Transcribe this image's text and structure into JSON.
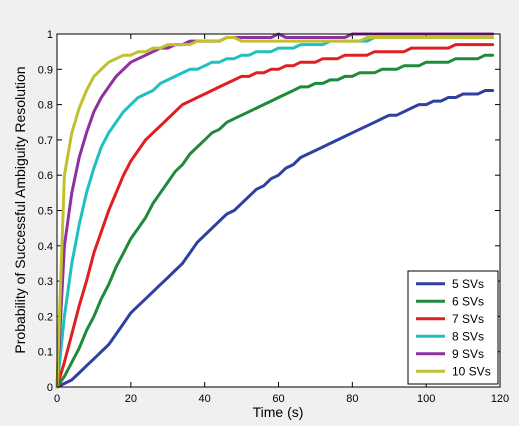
{
  "chart_data": {
    "type": "line",
    "title": "",
    "xlabel": "Time (s)",
    "ylabel": "Probability of Successful Ambiguity Resolution",
    "xlim": [
      0,
      120
    ],
    "ylim": [
      0,
      1
    ],
    "xticks": [
      0,
      20,
      40,
      60,
      80,
      100,
      120
    ],
    "yticks": [
      0,
      0.1,
      0.2,
      0.3,
      0.4,
      0.5,
      0.6,
      0.7,
      0.8,
      0.9,
      1
    ],
    "ytick_labels": [
      "0",
      "0.1",
      "0.2",
      "0.3",
      "0.4",
      "0.5",
      "0.6",
      "0.7",
      "0.8",
      "0.9",
      "1"
    ],
    "grid": false,
    "legend_position": "bottom-right",
    "series": [
      {
        "name": "5 SVs",
        "color": "#3040a0",
        "x": [
          0,
          2,
          4,
          6,
          8,
          10,
          12,
          14,
          16,
          18,
          20,
          22,
          24,
          26,
          28,
          30,
          32,
          34,
          36,
          38,
          40,
          42,
          44,
          46,
          48,
          50,
          52,
          54,
          56,
          58,
          60,
          62,
          64,
          66,
          68,
          70,
          72,
          74,
          76,
          78,
          80,
          82,
          84,
          86,
          88,
          90,
          92,
          94,
          96,
          98,
          100,
          102,
          104,
          106,
          108,
          110,
          112,
          114,
          116,
          118
        ],
        "y": [
          0,
          0.01,
          0.02,
          0.04,
          0.06,
          0.08,
          0.1,
          0.12,
          0.15,
          0.18,
          0.21,
          0.23,
          0.25,
          0.27,
          0.29,
          0.31,
          0.33,
          0.35,
          0.38,
          0.41,
          0.43,
          0.45,
          0.47,
          0.49,
          0.5,
          0.52,
          0.54,
          0.56,
          0.57,
          0.59,
          0.6,
          0.62,
          0.63,
          0.65,
          0.66,
          0.67,
          0.68,
          0.69,
          0.7,
          0.71,
          0.72,
          0.73,
          0.74,
          0.75,
          0.76,
          0.77,
          0.77,
          0.78,
          0.79,
          0.8,
          0.8,
          0.81,
          0.81,
          0.82,
          0.82,
          0.83,
          0.83,
          0.83,
          0.84,
          0.84
        ]
      },
      {
        "name": "6 SVs",
        "color": "#1f8a3a",
        "x": [
          0,
          2,
          4,
          6,
          8,
          10,
          12,
          14,
          16,
          18,
          20,
          22,
          24,
          26,
          28,
          30,
          32,
          34,
          36,
          38,
          40,
          42,
          44,
          46,
          48,
          50,
          52,
          54,
          56,
          58,
          60,
          62,
          64,
          66,
          68,
          70,
          72,
          74,
          76,
          78,
          80,
          82,
          84,
          86,
          88,
          90,
          92,
          94,
          96,
          98,
          100,
          102,
          104,
          106,
          108,
          110,
          112,
          114,
          116,
          118
        ],
        "y": [
          0,
          0.03,
          0.07,
          0.11,
          0.16,
          0.2,
          0.25,
          0.29,
          0.34,
          0.38,
          0.42,
          0.45,
          0.48,
          0.52,
          0.55,
          0.58,
          0.61,
          0.63,
          0.66,
          0.68,
          0.7,
          0.72,
          0.73,
          0.75,
          0.76,
          0.77,
          0.78,
          0.79,
          0.8,
          0.81,
          0.82,
          0.83,
          0.84,
          0.85,
          0.85,
          0.86,
          0.86,
          0.87,
          0.87,
          0.88,
          0.88,
          0.89,
          0.89,
          0.89,
          0.9,
          0.9,
          0.9,
          0.91,
          0.91,
          0.91,
          0.92,
          0.92,
          0.92,
          0.92,
          0.93,
          0.93,
          0.93,
          0.93,
          0.94,
          0.94
        ]
      },
      {
        "name": "7 SVs",
        "color": "#e02020",
        "x": [
          0,
          2,
          4,
          6,
          8,
          10,
          12,
          14,
          16,
          18,
          20,
          22,
          24,
          26,
          28,
          30,
          32,
          34,
          36,
          38,
          40,
          42,
          44,
          46,
          48,
          50,
          52,
          54,
          56,
          58,
          60,
          62,
          64,
          66,
          68,
          70,
          72,
          74,
          76,
          78,
          80,
          82,
          84,
          86,
          88,
          90,
          92,
          94,
          96,
          98,
          100,
          102,
          104,
          106,
          108,
          110,
          112,
          114,
          116,
          118
        ],
        "y": [
          0,
          0.07,
          0.15,
          0.23,
          0.3,
          0.38,
          0.44,
          0.5,
          0.55,
          0.6,
          0.64,
          0.67,
          0.7,
          0.72,
          0.74,
          0.76,
          0.78,
          0.8,
          0.81,
          0.82,
          0.83,
          0.84,
          0.85,
          0.86,
          0.87,
          0.88,
          0.88,
          0.89,
          0.89,
          0.9,
          0.9,
          0.91,
          0.91,
          0.92,
          0.92,
          0.92,
          0.93,
          0.93,
          0.93,
          0.94,
          0.94,
          0.94,
          0.94,
          0.95,
          0.95,
          0.95,
          0.95,
          0.95,
          0.96,
          0.96,
          0.96,
          0.96,
          0.96,
          0.96,
          0.97,
          0.97,
          0.97,
          0.97,
          0.97,
          0.97
        ]
      },
      {
        "name": "8 SVs",
        "color": "#20c0c0",
        "x": [
          0,
          2,
          4,
          6,
          8,
          10,
          12,
          14,
          16,
          18,
          20,
          22,
          24,
          26,
          28,
          30,
          32,
          34,
          36,
          38,
          40,
          42,
          44,
          46,
          48,
          50,
          52,
          54,
          56,
          58,
          60,
          62,
          64,
          66,
          68,
          70,
          72,
          74,
          76,
          78,
          80,
          82,
          84,
          86,
          88,
          90,
          92,
          94,
          96,
          98,
          100,
          102,
          104,
          106,
          108,
          110,
          112,
          114,
          116,
          118
        ],
        "y": [
          0,
          0.2,
          0.35,
          0.46,
          0.55,
          0.62,
          0.68,
          0.72,
          0.75,
          0.78,
          0.8,
          0.82,
          0.83,
          0.84,
          0.86,
          0.87,
          0.88,
          0.89,
          0.9,
          0.9,
          0.91,
          0.92,
          0.92,
          0.93,
          0.93,
          0.94,
          0.94,
          0.95,
          0.95,
          0.95,
          0.96,
          0.96,
          0.96,
          0.97,
          0.97,
          0.97,
          0.97,
          0.98,
          0.98,
          0.98,
          0.98,
          0.98,
          0.98,
          0.99,
          0.99,
          0.99,
          0.99,
          0.99,
          0.99,
          0.99,
          0.99,
          0.99,
          0.99,
          0.99,
          0.99,
          0.99,
          0.99,
          0.99,
          0.99,
          0.99
        ]
      },
      {
        "name": "9 SVs",
        "color": "#9030a0",
        "x": [
          0,
          2,
          4,
          6,
          8,
          10,
          12,
          14,
          16,
          18,
          20,
          22,
          24,
          26,
          28,
          30,
          32,
          34,
          36,
          38,
          40,
          42,
          44,
          46,
          48,
          50,
          52,
          54,
          56,
          58,
          60,
          62,
          64,
          66,
          68,
          70,
          72,
          74,
          76,
          78,
          80,
          82,
          84,
          86,
          88,
          90,
          92,
          94,
          96,
          98,
          100,
          102,
          104,
          106,
          108,
          110,
          112,
          114,
          116,
          118
        ],
        "y": [
          0,
          0.4,
          0.55,
          0.65,
          0.72,
          0.78,
          0.82,
          0.85,
          0.88,
          0.9,
          0.92,
          0.93,
          0.94,
          0.95,
          0.96,
          0.96,
          0.97,
          0.97,
          0.98,
          0.98,
          0.98,
          0.98,
          0.98,
          0.99,
          0.99,
          0.99,
          0.99,
          0.99,
          0.99,
          0.99,
          1.0,
          0.99,
          0.99,
          0.99,
          0.99,
          0.99,
          0.99,
          0.99,
          0.99,
          0.99,
          1.0,
          1.0,
          1.0,
          1.0,
          1.0,
          1.0,
          1.0,
          1.0,
          1.0,
          1.0,
          1.0,
          1.0,
          1.0,
          1.0,
          1.0,
          1.0,
          1.0,
          1.0,
          1.0,
          1.0
        ]
      },
      {
        "name": "10 SVs",
        "color": "#c0c030",
        "x": [
          0,
          2,
          4,
          6,
          8,
          10,
          12,
          14,
          16,
          18,
          20,
          22,
          24,
          26,
          28,
          30,
          32,
          34,
          36,
          38,
          40,
          42,
          44,
          46,
          48,
          50,
          52,
          54,
          56,
          58,
          60,
          62,
          64,
          66,
          68,
          70,
          72,
          74,
          76,
          78,
          80,
          82,
          84,
          86,
          88,
          90,
          92,
          94,
          96,
          98,
          100,
          102,
          104,
          106,
          108,
          110,
          112,
          114,
          116,
          118
        ],
        "y": [
          0,
          0.6,
          0.72,
          0.79,
          0.84,
          0.88,
          0.9,
          0.92,
          0.93,
          0.94,
          0.94,
          0.95,
          0.95,
          0.96,
          0.96,
          0.97,
          0.97,
          0.97,
          0.97,
          0.98,
          0.98,
          0.98,
          0.98,
          0.99,
          0.99,
          0.98,
          0.98,
          0.98,
          0.98,
          0.98,
          0.98,
          0.98,
          0.98,
          0.98,
          0.98,
          0.98,
          0.98,
          0.98,
          0.98,
          0.98,
          0.98,
          0.98,
          0.99,
          0.99,
          0.99,
          0.99,
          0.99,
          0.99,
          0.99,
          0.99,
          0.99,
          0.99,
          0.99,
          0.99,
          0.99,
          0.99,
          0.99,
          0.99,
          0.99,
          0.99
        ]
      }
    ]
  }
}
